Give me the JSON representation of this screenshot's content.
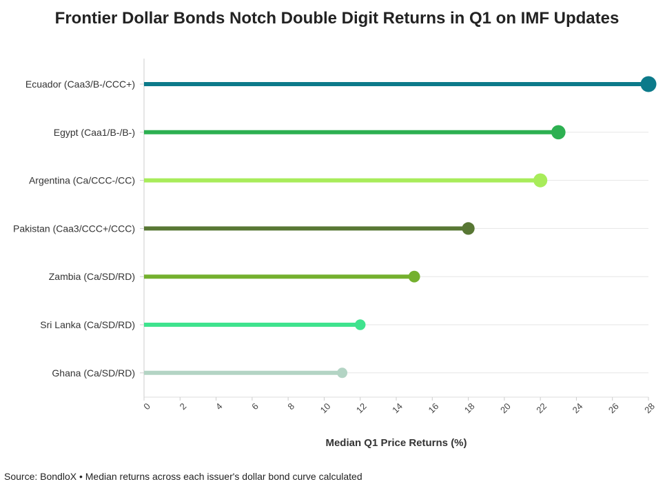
{
  "chart_data": {
    "type": "lollipop",
    "title": "Frontier Dollar Bonds Notch Double Digit Returns in Q1 on IMF Updates",
    "xlabel": "Median Q1 Price Returns (%)",
    "ylabel": "",
    "xlim": [
      0,
      28
    ],
    "x_ticks": [
      0,
      2,
      4,
      6,
      8,
      10,
      12,
      14,
      16,
      18,
      20,
      22,
      24,
      26,
      28
    ],
    "grid": "horizontal",
    "legend": "none",
    "categories": [
      "Ecuador (Caa3/B-/CCC+)",
      "Egypt (Caa1/B-/B-)",
      "Argentina (Ca/CCC-/CC)",
      "Pakistan (Caa3/CCC+/CCC)",
      "Zambia (Ca/SD/RD)",
      "Sri Lanka (Ca/SD/RD)",
      "Ghana (Ca/SD/RD)"
    ],
    "values": [
      28,
      23,
      22,
      18,
      15,
      12,
      11
    ],
    "colors": [
      "#0c7a8a",
      "#2db051",
      "#a8ec5a",
      "#587734",
      "#74b02e",
      "#3fe38e",
      "#b3d4c4"
    ],
    "source": "Source: BondloX • Median returns across each issuer's dollar bond curve calculated"
  }
}
